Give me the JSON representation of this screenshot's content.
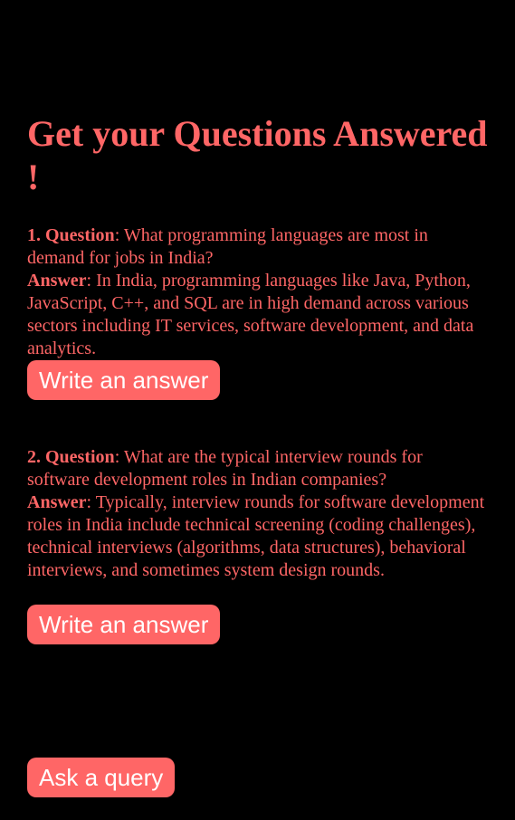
{
  "page": {
    "title": "Get your Questions Answered !"
  },
  "questions": [
    {
      "number": "1.",
      "question_label": "Question",
      "question_text": ": What programming languages are most in demand for jobs in India?",
      "answer_label": "Answer",
      "answer_text": ": In India, programming languages like Java, Python, JavaScript, C++, and SQL are in high demand across various sectors including IT services, software development, and data analytics.",
      "button_label": "Write an answer"
    },
    {
      "number": "2.",
      "question_label": "Question",
      "question_text": ": What are the typical interview rounds for software development roles in Indian companies?",
      "answer_label": "Answer",
      "answer_text": ": Typically, interview rounds for software development roles in India include technical screening (coding challenges), technical interviews (algorithms, data structures), behavioral interviews, and sometimes system design rounds.",
      "button_label": "Write an answer"
    }
  ],
  "footer": {
    "ask_label": "Ask a query"
  },
  "colors": {
    "background": "#000000",
    "accent": "#ff6666",
    "button_text": "#ffffff"
  }
}
